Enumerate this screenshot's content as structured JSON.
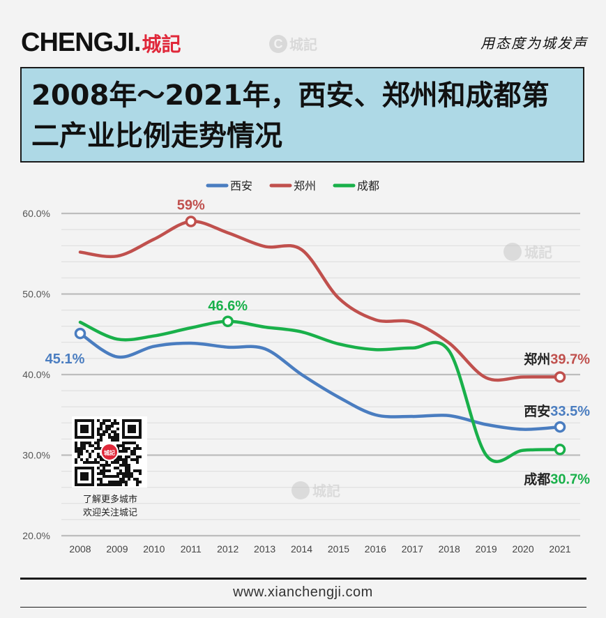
{
  "header": {
    "brand_latin": "CHENGJI.",
    "brand_cn": "城記",
    "slogan": "用态度为城发声",
    "watermark": "城記"
  },
  "title": "2008年～2021年，西安、郑州和成都第二产业比例走势情况",
  "qr": {
    "badge": "城記",
    "caption_line1": "了解更多城市",
    "caption_line2": "欢迎关注城记"
  },
  "footer": {
    "url": "www.xianchengji.com"
  },
  "colors": {
    "xian": "#4a7dc0",
    "zhengzhou": "#c0504d",
    "chengdu": "#19b04a",
    "title_bg": "#aed9e6",
    "brand_red": "#e0283a"
  },
  "chart_data": {
    "type": "line",
    "x": [
      "2008",
      "2009",
      "2010",
      "2011",
      "2012",
      "2013",
      "2014",
      "2015",
      "2016",
      "2017",
      "2018",
      "2019",
      "2020",
      "2021"
    ],
    "y_ticks": [
      "20.0%",
      "30.0%",
      "40.0%",
      "50.0%",
      "60.0%"
    ],
    "ylim": [
      20,
      60
    ],
    "y_unit": "%",
    "grid": true,
    "legend_position": "top-center",
    "series": [
      {
        "name": "西安",
        "color": "#4a7dc0",
        "values": [
          45.1,
          42.2,
          43.5,
          43.9,
          43.4,
          43.2,
          40.0,
          37.2,
          35.0,
          34.8,
          34.9,
          33.8,
          33.2,
          33.5
        ]
      },
      {
        "name": "郑州",
        "color": "#c0504d",
        "values": [
          55.2,
          54.7,
          56.8,
          59.0,
          57.6,
          55.9,
          55.5,
          49.5,
          46.8,
          46.5,
          43.9,
          39.6,
          39.7,
          39.7
        ]
      },
      {
        "name": "成都",
        "color": "#19b04a",
        "values": [
          46.5,
          44.4,
          44.8,
          45.8,
          46.6,
          45.9,
          45.3,
          43.8,
          43.1,
          43.3,
          42.9,
          30.0,
          30.6,
          30.7
        ]
      }
    ],
    "annotations": [
      {
        "series": 0,
        "index": 0,
        "text": "45.1%"
      },
      {
        "series": 1,
        "index": 3,
        "text": "59%"
      },
      {
        "series": 2,
        "index": 4,
        "text": "46.6%"
      },
      {
        "series": 1,
        "index": 13,
        "prefix": "郑州",
        "text": "39.7%"
      },
      {
        "series": 0,
        "index": 13,
        "prefix": "西安",
        "text": "33.5%"
      },
      {
        "series": 2,
        "index": 13,
        "prefix": "成都",
        "text": "30.7%"
      }
    ]
  }
}
